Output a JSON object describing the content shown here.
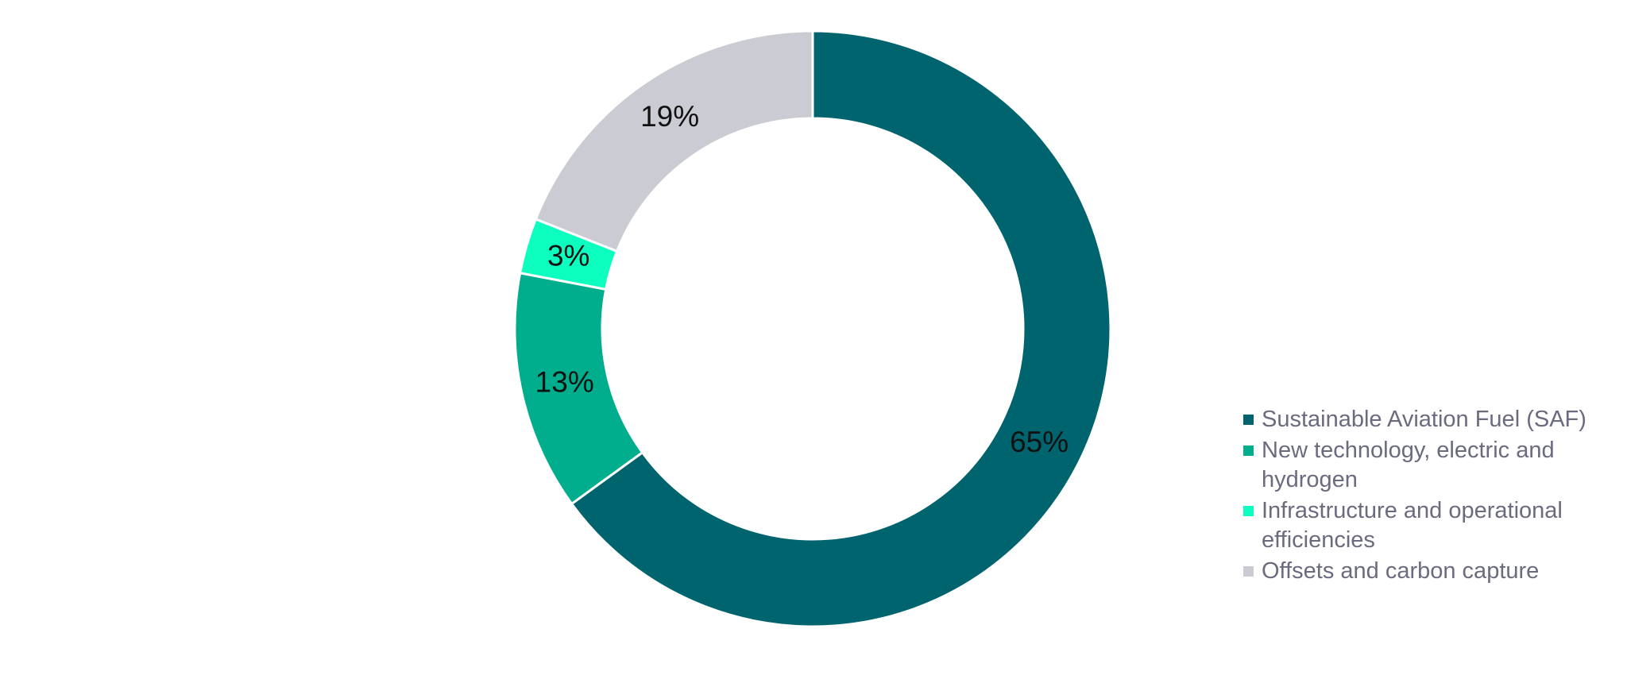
{
  "chart_data": {
    "type": "donut",
    "categories": [
      "Sustainable Aviation Fuel (SAF)",
      "New technology, electric and hydrogen",
      "Infrastructure and operational efficiencies",
      "Offsets and carbon capture"
    ],
    "values": [
      65,
      13,
      3,
      19
    ],
    "value_labels": [
      "65%",
      "13%",
      "3%",
      "19%"
    ],
    "colors": [
      "#00646e",
      "#00ad8c",
      "#0dffc0",
      "#cbccd3"
    ],
    "legend": "right"
  }
}
